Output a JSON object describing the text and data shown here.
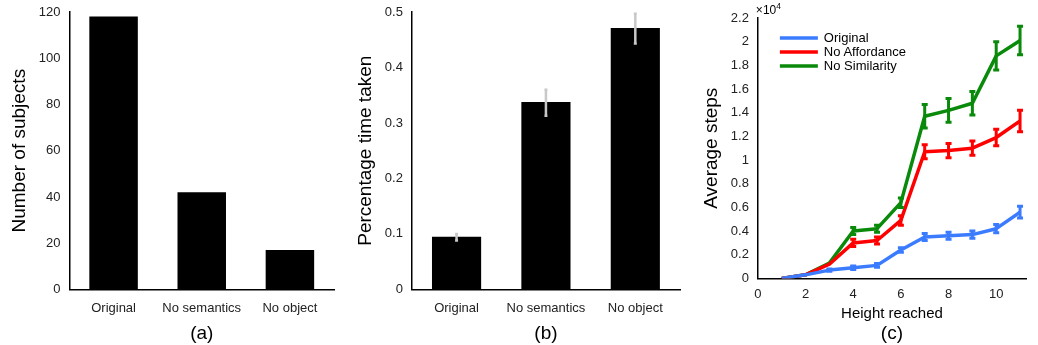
{
  "chart_data": [
    {
      "type": "bar",
      "ylabel": "Number of subjects",
      "categories": [
        "Original",
        "No semantics",
        "No object"
      ],
      "values": [
        118,
        42,
        17
      ],
      "color": "#000000",
      "ylim": [
        0,
        120
      ],
      "yticks": [
        0,
        20,
        40,
        60,
        80,
        100,
        120
      ],
      "grid": false,
      "legend": false,
      "annotations": [
        "(a)"
      ]
    },
    {
      "type": "bar",
      "ylabel": "Percentage time taken",
      "categories": [
        "Original",
        "No semantics",
        "No object"
      ],
      "values": [
        0.095,
        0.338,
        0.471
      ],
      "errors": [
        [
          0.088,
          0.1
        ],
        [
          0.313,
          0.36
        ],
        [
          0.443,
          0.497
        ]
      ],
      "color": "#000000",
      "ylim": [
        0,
        0.5
      ],
      "yticks": [
        0,
        0.1,
        0.2,
        0.3,
        0.4,
        0.5
      ],
      "grid": false,
      "legend": false,
      "annotations": [
        "(b)"
      ]
    },
    {
      "type": "line",
      "xlabel": "Height reached",
      "ylabel": "Average steps",
      "x": [
        1,
        2,
        3,
        4,
        5,
        6,
        7,
        8,
        9,
        10,
        11
      ],
      "xlim": [
        0,
        11.25
      ],
      "xticks": [
        0,
        2,
        4,
        6,
        8,
        10
      ],
      "ylim": [
        0,
        2.2
      ],
      "yticks": [
        0,
        0.2,
        0.4,
        0.6,
        0.8,
        1,
        1.2,
        1.4,
        1.6,
        1.8,
        2,
        2.2
      ],
      "grid": false,
      "legend": "top left",
      "marker": "none",
      "line_style": "solid",
      "annotations": [
        "×10$^{4}$",
        "(c)"
      ],
      "series": [
        {
          "name": "Original",
          "color": "#3a7bff",
          "values": [
            0,
            0.03,
            0.07,
            0.09,
            0.11,
            0.24,
            0.35,
            0.36,
            0.37,
            0.42,
            0.56
          ],
          "errors": [
            null,
            null,
            0.01,
            0.015,
            0.015,
            0.02,
            0.03,
            0.03,
            0.03,
            0.035,
            0.05
          ]
        },
        {
          "name": "No Affordance",
          "color": "#ff0000",
          "values": [
            0,
            0.03,
            0.12,
            0.3,
            0.32,
            0.49,
            1.07,
            1.08,
            1.1,
            1.19,
            1.33
          ],
          "errors": [
            null,
            null,
            null,
            0.03,
            0.03,
            0.04,
            0.06,
            0.06,
            0.06,
            0.07,
            0.09
          ]
        },
        {
          "name": "No Similarity",
          "color": "#0a8a0a",
          "values": [
            0,
            0.03,
            0.13,
            0.4,
            0.42,
            0.64,
            1.37,
            1.42,
            1.48,
            1.88,
            2.01
          ],
          "errors": [
            null,
            null,
            null,
            0.03,
            0.03,
            0.04,
            0.1,
            0.1,
            0.1,
            0.12,
            0.12
          ]
        }
      ]
    }
  ]
}
